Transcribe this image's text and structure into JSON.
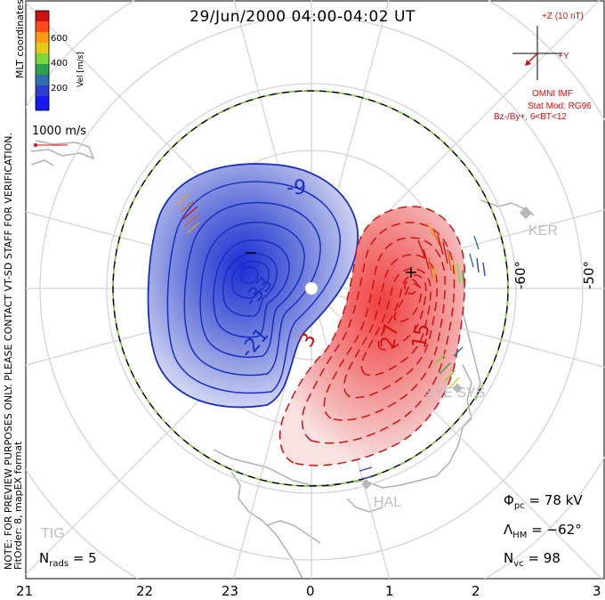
{
  "title": "29/Jun/2000 04:00-04:02 UT",
  "vertical_notes": {
    "note1": "NOTE: FOR PREVIEW PURPOSES ONLY. PLEASE CONTACT VT-SD STAFF FOR VERIFICATION.",
    "note2": "FitOrder: 8, mapEX format"
  },
  "colorbar": {
    "label": "Vel [m/s]",
    "coords_label": "MLT coordinates",
    "ticks": [
      "600",
      "400",
      "200"
    ],
    "colors": [
      "#d01010",
      "#ff4a1a",
      "#ff9a10",
      "#e8c818",
      "#7ad83a",
      "#2aa050",
      "#2f6fb0",
      "#2d3fd0",
      "#1818f0"
    ]
  },
  "scale_vector": {
    "label": "1000 m/s"
  },
  "imf_panel": {
    "z_label": "+Z (10 nT)",
    "y_label": "+Y",
    "source": "OMNI IMF",
    "model": "Stat Mod: RG96",
    "condition": "Bz-/By+, 6<BT<12"
  },
  "latitude_labels": [
    "-60°",
    "-50°"
  ],
  "stations": [
    "KER",
    "SYE SYS",
    "HAL",
    "TIG"
  ],
  "contours": {
    "negative": [
      "-9",
      "-33",
      "-21"
    ],
    "positive": [
      "3",
      "27",
      "15"
    ]
  },
  "stats": {
    "phi_symbol": "Φ",
    "phi_sub": "pc",
    "phi_value": "= 78 kV",
    "lambda_symbol": "Λ",
    "lambda_sub": "HM",
    "lambda_value": "= −62°",
    "nvc_symbol": "N",
    "nvc_sub": "vc",
    "nvc_value": "= 98",
    "nrads_symbol": "N",
    "nrads_sub": "rads",
    "nrads_value": "= 5"
  },
  "mlt_labels": [
    "21",
    "22",
    "23",
    "0",
    "1",
    "2",
    "3"
  ]
}
